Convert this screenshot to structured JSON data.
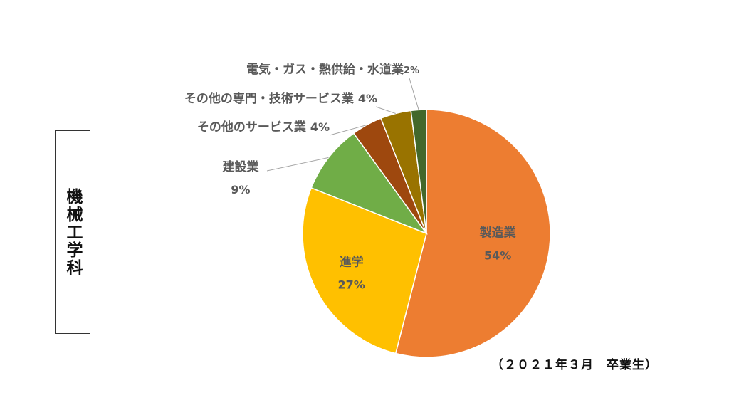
{
  "side_title": "機械工学科",
  "footnote": "（２０２１年３月　卒業生）",
  "chart_data": {
    "type": "pie",
    "title": "",
    "slices": [
      {
        "label": "製造業",
        "value": 54,
        "value_label": "54%",
        "color": "#ED7D31"
      },
      {
        "label": "進学",
        "value": 27,
        "value_label": "27%",
        "color": "#FFC000"
      },
      {
        "label": "建設業",
        "value": 9,
        "value_label": "9%",
        "color": "#70AD47"
      },
      {
        "label": "その他のサービス業",
        "value": 4,
        "value_label": "4%",
        "color": "#9E480E"
      },
      {
        "label": "その他の専門・技術サービス業",
        "value": 4,
        "value_label": "4%",
        "color": "#997300"
      },
      {
        "label": "電気・ガス・熱供給・水道業",
        "value": 2,
        "value_label": "2%",
        "color": "#43682B"
      }
    ],
    "start": "top",
    "direction": "clockwise",
    "label_color": "#595959",
    "leader_line_color": "#A6A6A6"
  }
}
